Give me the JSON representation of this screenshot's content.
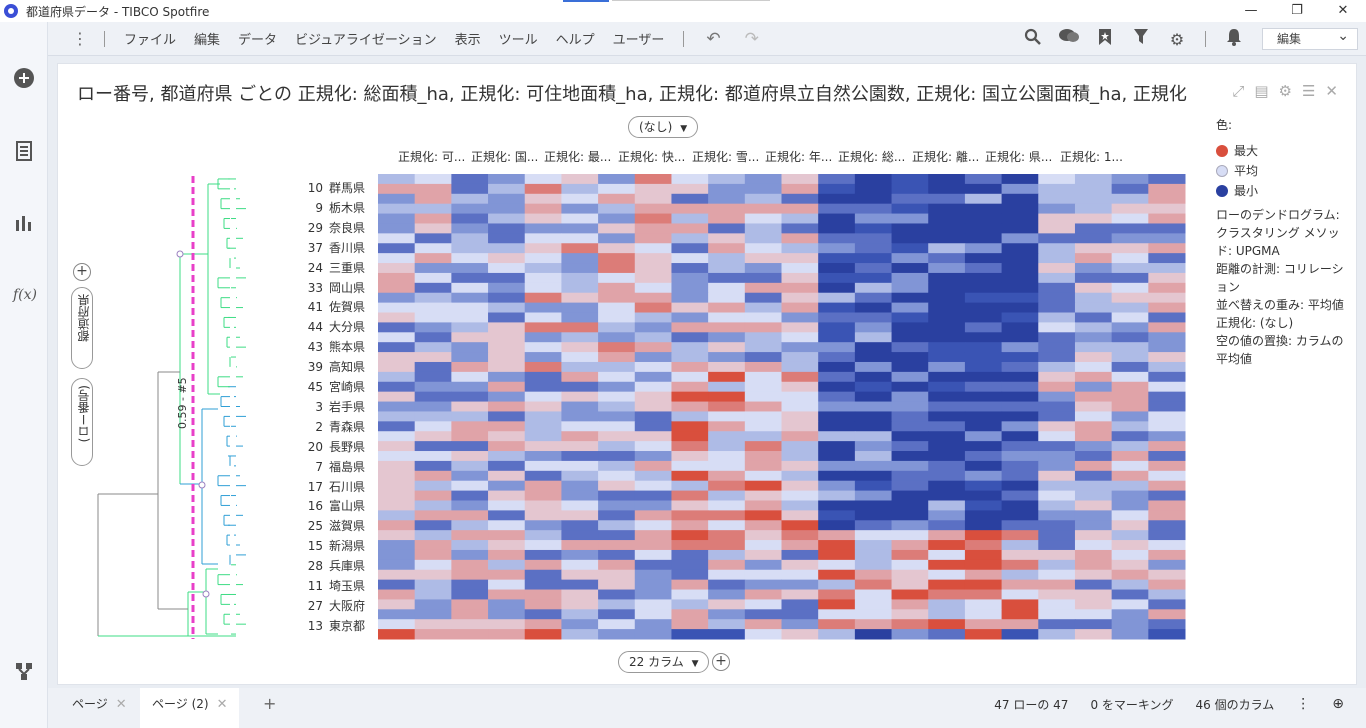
{
  "window": {
    "title": "都道府県データ - TIBCO Spotfire",
    "controls": [
      "—",
      "❐",
      "✕"
    ]
  },
  "menu": {
    "items": [
      "ファイル",
      "編集",
      "データ",
      "ビジュアライゼーション",
      "表示",
      "ツール",
      "ヘルプ",
      "ユーザー"
    ],
    "mode_select": "編集"
  },
  "viz": {
    "title": "ロー番号, 都道府県 ごとの 正規化: 総面積_ha, 正規化: 可住地面積_ha, 正規化: 都道府県立自然公園数, 正規化: 国立公園面積_ha, 正規化",
    "top_selector": "(なし)",
    "column_headers": [
      "正規化: 可...",
      "正規化: 国...",
      "正規化: 最...",
      "正規化: 快...",
      "正規化: 雪...",
      "正規化: 年...",
      "正規化: 総...",
      "正規化: 離...",
      "正規化: 県...",
      "正規化: 1..."
    ],
    "row_axis_pills": [
      "都道府県",
      "(ロー番号)"
    ],
    "cut_label": "0.59 - #5",
    "column_count": "22 カラム",
    "rows": [
      {
        "num": "10",
        "name": "群馬県"
      },
      {
        "num": "9",
        "name": "栃木県"
      },
      {
        "num": "29",
        "name": "奈良県"
      },
      {
        "num": "37",
        "name": "香川県"
      },
      {
        "num": "24",
        "name": "三重県"
      },
      {
        "num": "33",
        "name": "岡山県"
      },
      {
        "num": "41",
        "name": "佐賀県"
      },
      {
        "num": "44",
        "name": "大分県"
      },
      {
        "num": "43",
        "name": "熊本県"
      },
      {
        "num": "39",
        "name": "高知県"
      },
      {
        "num": "45",
        "name": "宮崎県"
      },
      {
        "num": "3",
        "name": "岩手県"
      },
      {
        "num": "2",
        "name": "青森県"
      },
      {
        "num": "20",
        "name": "長野県"
      },
      {
        "num": "7",
        "name": "福島県"
      },
      {
        "num": "17",
        "name": "石川県"
      },
      {
        "num": "16",
        "name": "富山県"
      },
      {
        "num": "25",
        "name": "滋賀県"
      },
      {
        "num": "15",
        "name": "新潟県"
      },
      {
        "num": "28",
        "name": "兵庫県"
      },
      {
        "num": "11",
        "name": "埼玉県"
      },
      {
        "num": "27",
        "name": "大阪府"
      },
      {
        "num": "13",
        "name": "東京都"
      }
    ]
  },
  "legend": {
    "title": "色:",
    "items": [
      {
        "label": "最大",
        "color": "#d94f3d"
      },
      {
        "label": "平均",
        "color": "#d7ddf5"
      },
      {
        "label": "最小",
        "color": "#2a40a0"
      }
    ],
    "dendro_title": "ローのデンドログラム:",
    "lines": [
      "クラスタリング メソッド: UPGMA",
      "距離の計測: コリレーション",
      "並べ替えの重み: 平均値",
      "正規化: (なし)",
      "空の値の置換: カラムの平均値"
    ]
  },
  "status": {
    "tabs": [
      "ページ",
      "ページ (2)"
    ],
    "rows": "47 ローの 47",
    "marked": "0 をマーキング",
    "columns": "46 個のカラム"
  },
  "colors": {
    "max": "#d94f3d",
    "avg": "#d7ddf5",
    "min": "#2a40a0",
    "cut": "#e83fc8",
    "cluster_green": "#3ddc84",
    "cluster_blue": "#2f9fd6"
  }
}
